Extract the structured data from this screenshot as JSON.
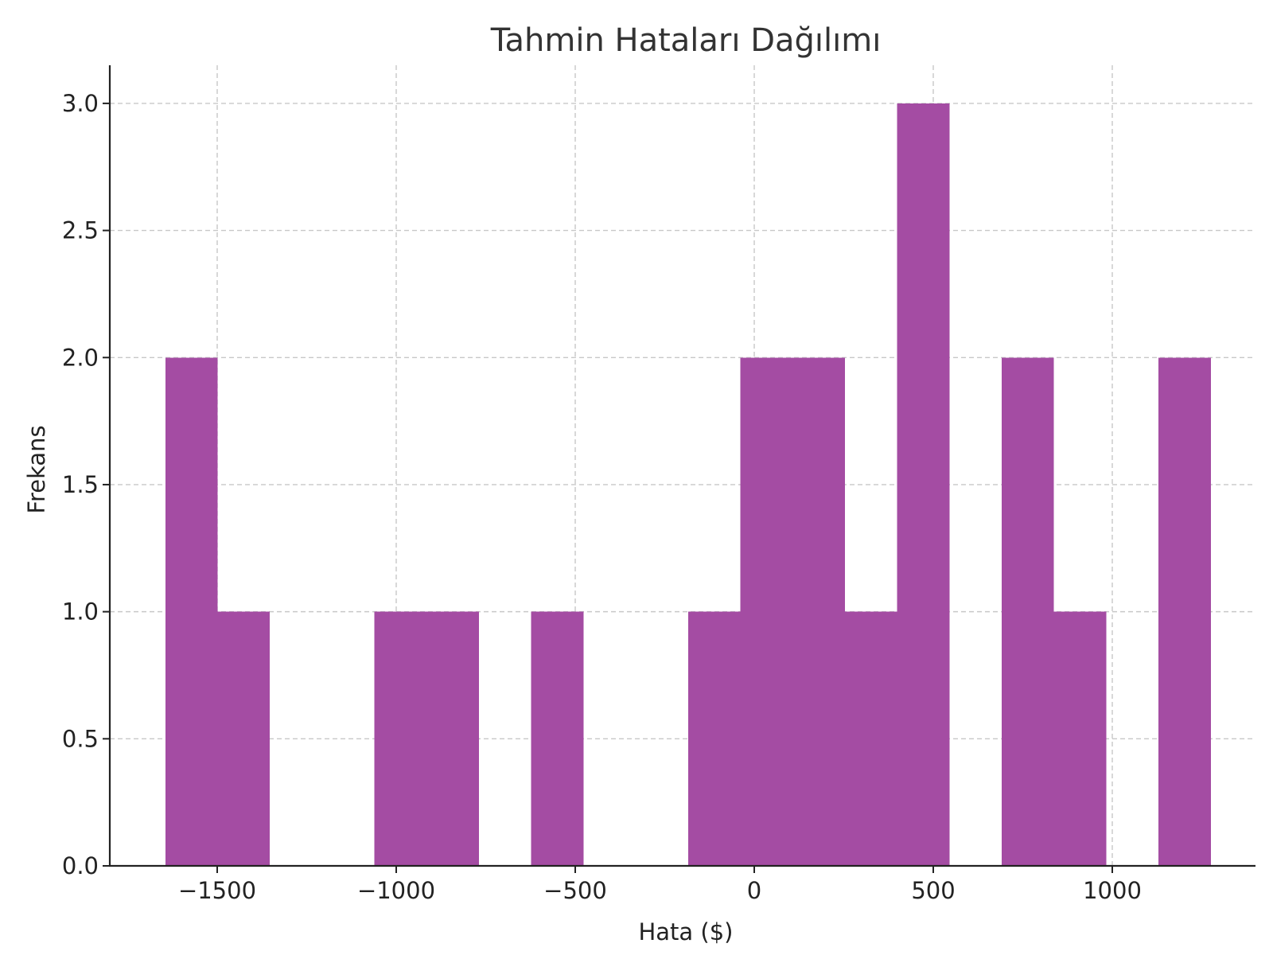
{
  "chart_data": {
    "type": "bar",
    "subtype": "histogram",
    "title": "Tahmin Hataları Dağılımı",
    "xlabel": "Hata ($)",
    "ylabel": "Frekans",
    "xlim": [
      -1800,
      1400
    ],
    "ylim": [
      0,
      3.15
    ],
    "x_ticks": [
      -1500,
      -1000,
      -500,
      0,
      500,
      1000
    ],
    "x_tick_labels": [
      "−1500",
      "−1000",
      "−500",
      "0",
      "500",
      "1000"
    ],
    "y_ticks": [
      0,
      0.5,
      1.0,
      1.5,
      2.0,
      2.5,
      3.0
    ],
    "y_tick_labels": [
      "0.0",
      "0.5",
      "1.0",
      "1.5",
      "2.0",
      "2.5",
      "3.0"
    ],
    "bin_edges": [
      -1645,
      -1499,
      -1353,
      -1207,
      -1061,
      -915,
      -769,
      -623,
      -477,
      -331,
      -185,
      -39,
      107,
      253,
      399,
      545,
      691,
      837,
      983,
      1129,
      1275
    ],
    "counts": [
      2,
      1,
      0,
      0,
      1,
      1,
      0,
      1,
      0,
      0,
      1,
      2,
      2,
      1,
      3,
      0,
      2,
      1,
      0,
      2
    ],
    "bar_color": "#a44ca3",
    "grid": true,
    "grid_style": "dashed"
  }
}
